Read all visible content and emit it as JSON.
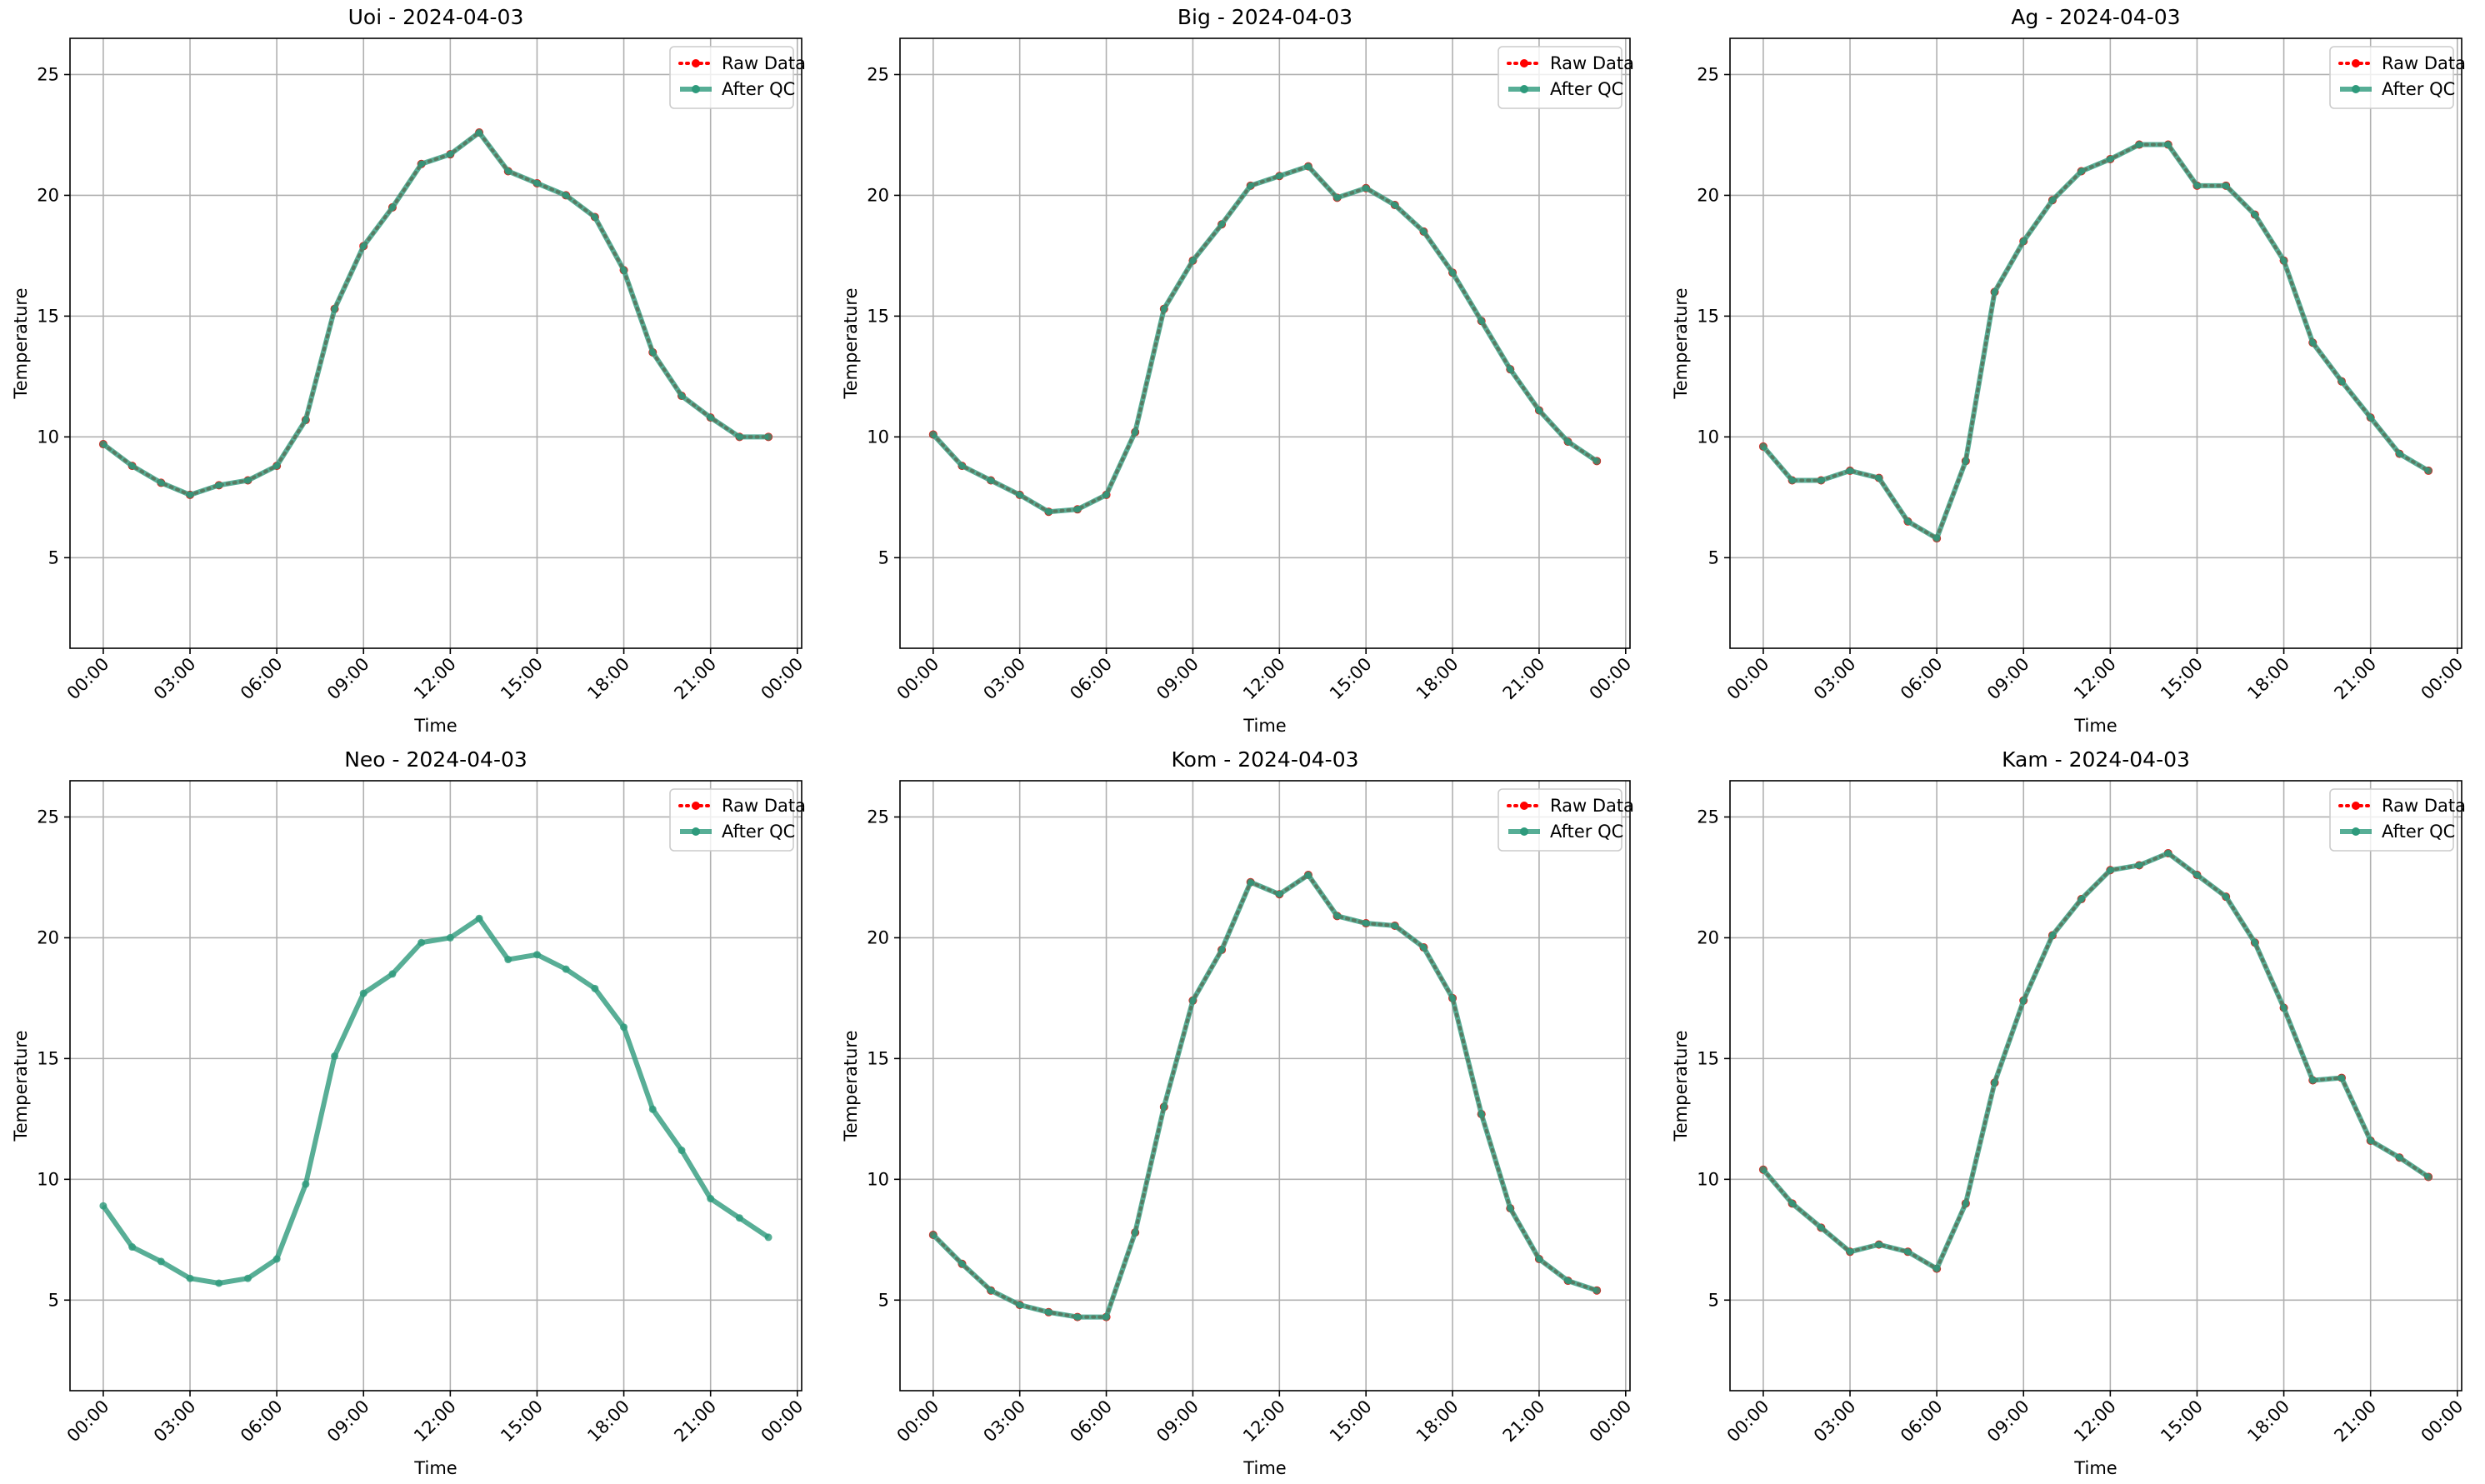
{
  "chart_data": [
    {
      "type": "line",
      "title": "Uoi - 2024-04-03",
      "xlabel": "Time",
      "ylabel": "Temperature",
      "x": [
        "2024-04-03T00:00",
        "2024-04-03T01:00",
        "2024-04-03T02:00",
        "2024-04-03T03:00",
        "2024-04-03T04:00",
        "2024-04-03T05:00",
        "2024-04-03T06:00",
        "2024-04-03T07:00",
        "2024-04-03T08:00",
        "2024-04-03T09:00",
        "2024-04-03T10:00",
        "2024-04-03T11:00",
        "2024-04-03T12:00",
        "2024-04-03T13:00",
        "2024-04-03T14:00",
        "2024-04-03T15:00",
        "2024-04-03T16:00",
        "2024-04-03T17:00",
        "2024-04-03T18:00",
        "2024-04-03T19:00",
        "2024-04-03T20:00",
        "2024-04-03T21:00",
        "2024-04-03T22:00",
        "2024-04-03T23:00"
      ],
      "series": [
        {
          "name": "Raw Data",
          "color": "red",
          "linestyle": "dotted",
          "values": [
            9.7,
            8.8,
            8.1,
            7.6,
            8.0,
            8.2,
            8.8,
            10.7,
            15.3,
            17.9,
            19.5,
            21.3,
            21.7,
            22.6,
            21.0,
            20.5,
            20.0,
            19.1,
            16.9,
            13.5,
            11.7,
            10.8,
            10.0,
            10.0
          ]
        },
        {
          "name": "After QC",
          "color": "#2e9a7c",
          "linestyle": "solid",
          "values": [
            9.7,
            8.8,
            8.1,
            7.6,
            8.0,
            8.2,
            8.8,
            10.7,
            15.3,
            17.9,
            19.5,
            21.3,
            21.7,
            22.6,
            21.0,
            20.5,
            20.0,
            19.1,
            16.9,
            13.5,
            11.7,
            10.8,
            10.0,
            10.0
          ]
        }
      ],
      "xlim": [
        "2024-04-02T22:51",
        "2024-04-04T00:09"
      ],
      "xticks": [
        {
          "value": "2024-04-03T00:00",
          "label": "00:00"
        },
        {
          "value": "2024-04-03T03:00",
          "label": "03:00"
        },
        {
          "value": "2024-04-03T06:00",
          "label": "06:00"
        },
        {
          "value": "2024-04-03T09:00",
          "label": "09:00"
        },
        {
          "value": "2024-04-03T12:00",
          "label": "12:00"
        },
        {
          "value": "2024-04-03T15:00",
          "label": "15:00"
        },
        {
          "value": "2024-04-03T18:00",
          "label": "18:00"
        },
        {
          "value": "2024-04-03T21:00",
          "label": "21:00"
        },
        {
          "value": "2024-04-04T00:00",
          "label": "00:00"
        }
      ],
      "ylim": [
        1.25,
        26.5
      ],
      "yticks": [
        5,
        10,
        15,
        20,
        25
      ],
      "grid": true,
      "legend": "upper right"
    },
    {
      "type": "line",
      "title": "Big - 2024-04-03",
      "xlabel": "Time",
      "ylabel": "Temperature",
      "x": [
        "2024-04-03T00:00",
        "2024-04-03T01:00",
        "2024-04-03T02:00",
        "2024-04-03T03:00",
        "2024-04-03T04:00",
        "2024-04-03T05:00",
        "2024-04-03T06:00",
        "2024-04-03T07:00",
        "2024-04-03T08:00",
        "2024-04-03T09:00",
        "2024-04-03T10:00",
        "2024-04-03T11:00",
        "2024-04-03T12:00",
        "2024-04-03T13:00",
        "2024-04-03T14:00",
        "2024-04-03T15:00",
        "2024-04-03T16:00",
        "2024-04-03T17:00",
        "2024-04-03T18:00",
        "2024-04-03T19:00",
        "2024-04-03T20:00",
        "2024-04-03T21:00",
        "2024-04-03T22:00",
        "2024-04-03T23:00"
      ],
      "series": [
        {
          "name": "Raw Data",
          "color": "red",
          "linestyle": "dotted",
          "values": [
            10.1,
            8.8,
            8.2,
            7.6,
            6.9,
            7.0,
            7.6,
            10.2,
            15.3,
            17.3,
            18.8,
            20.4,
            20.8,
            21.2,
            19.9,
            20.3,
            19.6,
            18.5,
            16.8,
            14.8,
            12.8,
            11.1,
            9.8,
            9.0
          ]
        },
        {
          "name": "After QC",
          "color": "#2e9a7c",
          "linestyle": "solid",
          "values": [
            10.1,
            8.8,
            8.2,
            7.6,
            6.9,
            7.0,
            7.6,
            10.2,
            15.3,
            17.3,
            18.8,
            20.4,
            20.8,
            21.2,
            19.9,
            20.3,
            19.6,
            18.5,
            16.8,
            14.8,
            12.8,
            11.1,
            9.8,
            9.0
          ]
        }
      ],
      "xlim": [
        "2024-04-02T22:51",
        "2024-04-04T00:09"
      ],
      "xticks": [
        {
          "value": "2024-04-03T00:00",
          "label": "00:00"
        },
        {
          "value": "2024-04-03T03:00",
          "label": "03:00"
        },
        {
          "value": "2024-04-03T06:00",
          "label": "06:00"
        },
        {
          "value": "2024-04-03T09:00",
          "label": "09:00"
        },
        {
          "value": "2024-04-03T12:00",
          "label": "12:00"
        },
        {
          "value": "2024-04-03T15:00",
          "label": "15:00"
        },
        {
          "value": "2024-04-03T18:00",
          "label": "18:00"
        },
        {
          "value": "2024-04-03T21:00",
          "label": "21:00"
        },
        {
          "value": "2024-04-04T00:00",
          "label": "00:00"
        }
      ],
      "ylim": [
        1.25,
        26.5
      ],
      "yticks": [
        5,
        10,
        15,
        20,
        25
      ],
      "grid": true,
      "legend": "upper right"
    },
    {
      "type": "line",
      "title": "Ag - 2024-04-03",
      "xlabel": "Time",
      "ylabel": "Temperature",
      "x": [
        "2024-04-03T00:00",
        "2024-04-03T01:00",
        "2024-04-03T02:00",
        "2024-04-03T03:00",
        "2024-04-03T04:00",
        "2024-04-03T05:00",
        "2024-04-03T06:00",
        "2024-04-03T07:00",
        "2024-04-03T08:00",
        "2024-04-03T09:00",
        "2024-04-03T10:00",
        "2024-04-03T11:00",
        "2024-04-03T12:00",
        "2024-04-03T13:00",
        "2024-04-03T14:00",
        "2024-04-03T15:00",
        "2024-04-03T16:00",
        "2024-04-03T17:00",
        "2024-04-03T18:00",
        "2024-04-03T19:00",
        "2024-04-03T20:00",
        "2024-04-03T21:00",
        "2024-04-03T22:00",
        "2024-04-03T23:00"
      ],
      "series": [
        {
          "name": "Raw Data",
          "color": "red",
          "linestyle": "dotted",
          "values": [
            9.6,
            8.2,
            8.2,
            8.6,
            8.3,
            6.5,
            5.8,
            9.0,
            16.0,
            18.1,
            19.8,
            21.0,
            21.5,
            22.1,
            22.1,
            20.4,
            20.4,
            19.2,
            17.3,
            13.9,
            12.3,
            10.8,
            9.3,
            8.6
          ]
        },
        {
          "name": "After QC",
          "color": "#2e9a7c",
          "linestyle": "solid",
          "values": [
            9.6,
            8.2,
            8.2,
            8.6,
            8.3,
            6.5,
            5.8,
            9.0,
            16.0,
            18.1,
            19.8,
            21.0,
            21.5,
            22.1,
            22.1,
            20.4,
            20.4,
            19.2,
            17.3,
            13.9,
            12.3,
            10.8,
            9.3,
            8.6
          ]
        }
      ],
      "xlim": [
        "2024-04-02T22:51",
        "2024-04-04T00:09"
      ],
      "xticks": [
        {
          "value": "2024-04-03T00:00",
          "label": "00:00"
        },
        {
          "value": "2024-04-03T03:00",
          "label": "03:00"
        },
        {
          "value": "2024-04-03T06:00",
          "label": "06:00"
        },
        {
          "value": "2024-04-03T09:00",
          "label": "09:00"
        },
        {
          "value": "2024-04-03T12:00",
          "label": "12:00"
        },
        {
          "value": "2024-04-03T15:00",
          "label": "15:00"
        },
        {
          "value": "2024-04-03T18:00",
          "label": "18:00"
        },
        {
          "value": "2024-04-03T21:00",
          "label": "21:00"
        },
        {
          "value": "2024-04-04T00:00",
          "label": "00:00"
        }
      ],
      "ylim": [
        1.25,
        26.5
      ],
      "yticks": [
        5,
        10,
        15,
        20,
        25
      ],
      "grid": true,
      "legend": "upper right"
    },
    {
      "type": "line",
      "title": "Neo - 2024-04-03",
      "xlabel": "Time",
      "ylabel": "Temperature",
      "x": [
        "2024-04-03T00:00",
        "2024-04-03T01:00",
        "2024-04-03T02:00",
        "2024-04-03T03:00",
        "2024-04-03T04:00",
        "2024-04-03T05:00",
        "2024-04-03T06:00",
        "2024-04-03T07:00",
        "2024-04-03T08:00",
        "2024-04-03T09:00",
        "2024-04-03T10:00",
        "2024-04-03T11:00",
        "2024-04-03T12:00",
        "2024-04-03T13:00",
        "2024-04-03T14:00",
        "2024-04-03T15:00",
        "2024-04-03T16:00",
        "2024-04-03T17:00",
        "2024-04-03T18:00",
        "2024-04-03T19:00",
        "2024-04-03T20:00",
        "2024-04-03T21:00",
        "2024-04-03T22:00",
        "2024-04-03T23:00"
      ],
      "series": [
        {
          "name": "Raw Data",
          "color": "red",
          "linestyle": "dotted",
          "values": [
            null,
            null,
            null,
            null,
            null,
            null,
            null,
            null,
            null,
            null,
            null,
            null,
            null,
            null,
            null,
            null,
            null,
            null,
            null,
            null,
            null,
            null,
            null,
            null
          ]
        },
        {
          "name": "After QC",
          "color": "#2e9a7c",
          "linestyle": "solid",
          "values": [
            8.9,
            7.2,
            6.6,
            5.9,
            5.7,
            5.9,
            6.7,
            9.8,
            15.1,
            17.7,
            18.5,
            19.8,
            20.0,
            20.8,
            19.1,
            19.3,
            18.7,
            17.9,
            16.3,
            12.9,
            11.2,
            9.2,
            8.4,
            7.6
          ]
        }
      ],
      "xlim": [
        "2024-04-02T22:51",
        "2024-04-04T00:09"
      ],
      "xticks": [
        {
          "value": "2024-04-03T00:00",
          "label": "00:00"
        },
        {
          "value": "2024-04-03T03:00",
          "label": "03:00"
        },
        {
          "value": "2024-04-03T06:00",
          "label": "06:00"
        },
        {
          "value": "2024-04-03T09:00",
          "label": "09:00"
        },
        {
          "value": "2024-04-03T12:00",
          "label": "12:00"
        },
        {
          "value": "2024-04-03T15:00",
          "label": "15:00"
        },
        {
          "value": "2024-04-03T18:00",
          "label": "18:00"
        },
        {
          "value": "2024-04-03T21:00",
          "label": "21:00"
        },
        {
          "value": "2024-04-04T00:00",
          "label": "00:00"
        }
      ],
      "ylim": [
        1.25,
        26.5
      ],
      "yticks": [
        5,
        10,
        15,
        20,
        25
      ],
      "grid": true,
      "legend": "upper right"
    },
    {
      "type": "line",
      "title": "Kom - 2024-04-03",
      "xlabel": "Time",
      "ylabel": "Temperature",
      "x": [
        "2024-04-03T00:00",
        "2024-04-03T01:00",
        "2024-04-03T02:00",
        "2024-04-03T03:00",
        "2024-04-03T04:00",
        "2024-04-03T05:00",
        "2024-04-03T06:00",
        "2024-04-03T07:00",
        "2024-04-03T08:00",
        "2024-04-03T09:00",
        "2024-04-03T10:00",
        "2024-04-03T11:00",
        "2024-04-03T12:00",
        "2024-04-03T13:00",
        "2024-04-03T14:00",
        "2024-04-03T15:00",
        "2024-04-03T16:00",
        "2024-04-03T17:00",
        "2024-04-03T18:00",
        "2024-04-03T19:00",
        "2024-04-03T20:00",
        "2024-04-03T21:00",
        "2024-04-03T22:00",
        "2024-04-03T23:00"
      ],
      "series": [
        {
          "name": "Raw Data",
          "color": "red",
          "linestyle": "dotted",
          "values": [
            7.7,
            6.5,
            5.4,
            4.8,
            4.5,
            4.3,
            4.3,
            7.8,
            13.0,
            17.4,
            19.5,
            22.3,
            21.8,
            22.6,
            20.9,
            20.6,
            20.5,
            19.6,
            17.5,
            12.7,
            8.8,
            6.7,
            5.8,
            5.4
          ]
        },
        {
          "name": "After QC",
          "color": "#2e9a7c",
          "linestyle": "solid",
          "values": [
            7.7,
            6.5,
            5.4,
            4.8,
            4.5,
            4.3,
            4.3,
            7.8,
            13.0,
            17.4,
            19.5,
            22.3,
            21.8,
            22.6,
            20.9,
            20.6,
            20.5,
            19.6,
            17.5,
            12.7,
            8.8,
            6.7,
            5.8,
            5.4
          ]
        }
      ],
      "xlim": [
        "2024-04-02T22:51",
        "2024-04-04T00:09"
      ],
      "xticks": [
        {
          "value": "2024-04-03T00:00",
          "label": "00:00"
        },
        {
          "value": "2024-04-03T03:00",
          "label": "03:00"
        },
        {
          "value": "2024-04-03T06:00",
          "label": "06:00"
        },
        {
          "value": "2024-04-03T09:00",
          "label": "09:00"
        },
        {
          "value": "2024-04-03T12:00",
          "label": "12:00"
        },
        {
          "value": "2024-04-03T15:00",
          "label": "15:00"
        },
        {
          "value": "2024-04-03T18:00",
          "label": "18:00"
        },
        {
          "value": "2024-04-03T21:00",
          "label": "21:00"
        },
        {
          "value": "2024-04-04T00:00",
          "label": "00:00"
        }
      ],
      "ylim": [
        1.25,
        26.5
      ],
      "yticks": [
        5,
        10,
        15,
        20,
        25
      ],
      "grid": true,
      "legend": "upper right"
    },
    {
      "type": "line",
      "title": "Kam - 2024-04-03",
      "xlabel": "Time",
      "ylabel": "Temperature",
      "x": [
        "2024-04-03T00:00",
        "2024-04-03T01:00",
        "2024-04-03T02:00",
        "2024-04-03T03:00",
        "2024-04-03T04:00",
        "2024-04-03T05:00",
        "2024-04-03T06:00",
        "2024-04-03T07:00",
        "2024-04-03T08:00",
        "2024-04-03T09:00",
        "2024-04-03T10:00",
        "2024-04-03T11:00",
        "2024-04-03T12:00",
        "2024-04-03T13:00",
        "2024-04-03T14:00",
        "2024-04-03T15:00",
        "2024-04-03T16:00",
        "2024-04-03T17:00",
        "2024-04-03T18:00",
        "2024-04-03T19:00",
        "2024-04-03T20:00",
        "2024-04-03T21:00",
        "2024-04-03T22:00",
        "2024-04-03T23:00"
      ],
      "series": [
        {
          "name": "Raw Data",
          "color": "red",
          "linestyle": "dotted",
          "values": [
            10.4,
            9.0,
            8.0,
            7.0,
            7.3,
            7.0,
            6.3,
            9.0,
            14.0,
            17.4,
            20.1,
            21.6,
            22.8,
            23.0,
            23.5,
            22.6,
            21.7,
            19.8,
            17.1,
            14.1,
            14.2,
            11.6,
            10.9,
            10.1
          ]
        },
        {
          "name": "After QC",
          "color": "#2e9a7c",
          "linestyle": "solid",
          "values": [
            10.4,
            9.0,
            8.0,
            7.0,
            7.3,
            7.0,
            6.3,
            9.0,
            14.0,
            17.4,
            20.1,
            21.6,
            22.8,
            23.0,
            23.5,
            22.6,
            21.7,
            19.8,
            17.1,
            14.1,
            14.2,
            11.6,
            10.9,
            10.1
          ]
        }
      ],
      "xlim": [
        "2024-04-02T22:51",
        "2024-04-04T00:09"
      ],
      "xticks": [
        {
          "value": "2024-04-03T00:00",
          "label": "00:00"
        },
        {
          "value": "2024-04-03T03:00",
          "label": "03:00"
        },
        {
          "value": "2024-04-03T06:00",
          "label": "06:00"
        },
        {
          "value": "2024-04-03T09:00",
          "label": "09:00"
        },
        {
          "value": "2024-04-03T12:00",
          "label": "12:00"
        },
        {
          "value": "2024-04-03T15:00",
          "label": "15:00"
        },
        {
          "value": "2024-04-03T18:00",
          "label": "18:00"
        },
        {
          "value": "2024-04-03T21:00",
          "label": "21:00"
        },
        {
          "value": "2024-04-04T00:00",
          "label": "00:00"
        }
      ],
      "ylim": [
        1.25,
        26.5
      ],
      "yticks": [
        5,
        10,
        15,
        20,
        25
      ],
      "grid": true,
      "legend": "upper right"
    }
  ]
}
